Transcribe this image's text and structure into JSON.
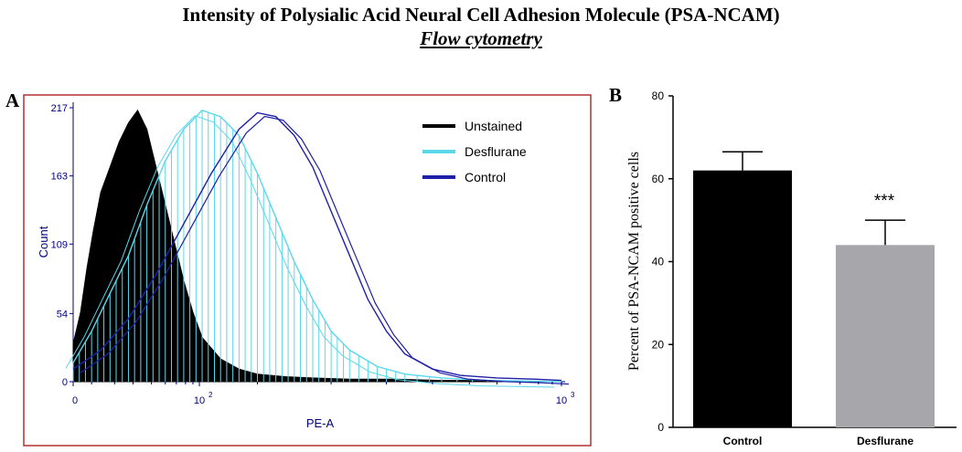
{
  "header": {
    "title": "Intensity of Polysialic Acid Neural Cell Adhesion Molecule (PSA-NCAM)",
    "subtitle": "Flow cytometry"
  },
  "chart_data": [
    {
      "panel": "A",
      "type": "line",
      "xlabel": "PE-A",
      "ylabel": "Count",
      "x_scale": "log",
      "x_ticks": [
        "0",
        "10",
        "10"
      ],
      "x_tick_exponents": [
        "",
        "2",
        "3"
      ],
      "y_ticks": [
        "0",
        "54",
        "109",
        "163",
        "217"
      ],
      "ylim": [
        0,
        217
      ],
      "legend_position": "top-right",
      "colors": {
        "Unstained": "#000000",
        "Desflurane": "#5ad8ea",
        "Control": "#1f1fa8",
        "frame": "#b03030"
      },
      "series": [
        {
          "name": "Unstained",
          "style": "filled",
          "x": [
            0,
            8,
            15,
            22,
            30,
            40,
            50,
            60,
            70,
            80,
            90,
            100,
            110,
            120,
            130,
            140,
            160,
            180,
            200,
            230,
            260,
            300,
            350,
            400,
            450,
            530
          ],
          "y": [
            30,
            55,
            90,
            120,
            150,
            170,
            190,
            205,
            215,
            200,
            170,
            140,
            110,
            80,
            55,
            35,
            18,
            10,
            6,
            4,
            3,
            2,
            2,
            1,
            1,
            0
          ]
        },
        {
          "name": "Desflurane",
          "style": "bars",
          "x": [
            0,
            20,
            40,
            60,
            80,
            100,
            120,
            140,
            160,
            180,
            200,
            220,
            240,
            260,
            280,
            300,
            330,
            360,
            400,
            450,
            530
          ],
          "y": [
            15,
            40,
            70,
            100,
            140,
            175,
            200,
            215,
            210,
            195,
            165,
            130,
            95,
            65,
            40,
            25,
            12,
            6,
            3,
            1,
            0
          ]
        },
        {
          "name": "Control",
          "style": "line",
          "x": [
            0,
            30,
            60,
            90,
            120,
            150,
            180,
            200,
            220,
            240,
            260,
            280,
            300,
            320,
            340,
            360,
            390,
            420,
            460,
            500,
            530
          ],
          "y": [
            10,
            25,
            50,
            85,
            125,
            165,
            200,
            213,
            210,
            195,
            170,
            135,
            100,
            65,
            40,
            22,
            10,
            5,
            3,
            2,
            1
          ]
        }
      ]
    },
    {
      "panel": "B",
      "type": "bar",
      "categories": [
        "Control",
        "Desflurane"
      ],
      "values": [
        62,
        44
      ],
      "errors": [
        4.5,
        6
      ],
      "colors": [
        "#000000",
        "#a6a6ab"
      ],
      "ylabel": "Percent of  PSA-NCAM  positive cells",
      "ylim": [
        0,
        80
      ],
      "y_ticks": [
        "0",
        "20",
        "40",
        "60",
        "80"
      ],
      "annotation": "***"
    }
  ]
}
